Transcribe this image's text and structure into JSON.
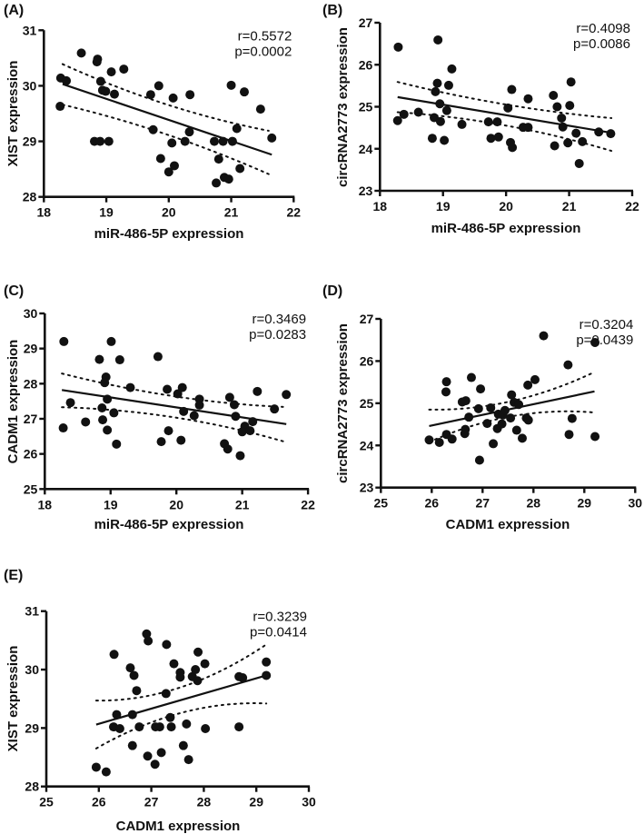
{
  "chart_data": [
    {
      "type": "scatter",
      "panel": "(A)",
      "xlabel": "miR-486-5P expression",
      "ylabel": "XIST expression",
      "xlim": [
        18,
        22
      ],
      "ylim": [
        28,
        31
      ],
      "xticks": [
        "18",
        "19",
        "20",
        "21",
        "22"
      ],
      "yticks": [
        "28",
        "29",
        "30",
        "31"
      ],
      "r_text": "r=0.5572",
      "p_text": "p=0.0002",
      "points": [
        [
          18.27,
          30.14
        ],
        [
          18.36,
          30.09
        ],
        [
          18.26,
          29.63
        ],
        [
          18.6,
          30.59
        ],
        [
          18.86,
          30.48
        ],
        [
          18.85,
          30.43
        ],
        [
          19.08,
          30.25
        ],
        [
          19.28,
          30.3
        ],
        [
          18.91,
          30.08
        ],
        [
          18.94,
          29.92
        ],
        [
          18.99,
          29.9
        ],
        [
          19.13,
          29.85
        ],
        [
          18.81,
          29.0
        ],
        [
          18.9,
          29.0
        ],
        [
          19.04,
          29.0
        ],
        [
          19.71,
          29.84
        ],
        [
          19.84,
          30.0
        ],
        [
          19.75,
          29.21
        ],
        [
          19.87,
          28.69
        ],
        [
          20.0,
          28.45
        ],
        [
          20.05,
          28.97
        ],
        [
          20.09,
          28.56
        ],
        [
          20.07,
          29.78
        ],
        [
          20.34,
          29.84
        ],
        [
          20.33,
          29.17
        ],
        [
          20.26,
          29.0
        ],
        [
          20.73,
          29.0
        ],
        [
          20.8,
          28.68
        ],
        [
          20.76,
          28.25
        ],
        [
          20.87,
          29.0
        ],
        [
          20.89,
          28.35
        ],
        [
          20.96,
          28.32
        ],
        [
          21.0,
          30.01
        ],
        [
          21.02,
          29.0
        ],
        [
          21.09,
          29.23
        ],
        [
          21.14,
          28.51
        ],
        [
          21.21,
          29.89
        ],
        [
          21.47,
          29.58
        ],
        [
          21.65,
          29.06
        ]
      ],
      "fit": [
        [
          18.3,
          30.03
        ],
        [
          21.65,
          28.76
        ]
      ],
      "ci_upper": [
        [
          18.3,
          30.39
        ],
        [
          19.95,
          29.67
        ],
        [
          21.6,
          29.19
        ]
      ],
      "ci_lower": [
        [
          18.3,
          29.66
        ],
        [
          19.95,
          29.13
        ],
        [
          21.6,
          28.41
        ]
      ]
    },
    {
      "type": "scatter",
      "panel": "(B)",
      "xlabel": "miR-486-5P expression",
      "ylabel": "circRNA2773 expression",
      "xlim": [
        18,
        22
      ],
      "ylim": [
        23,
        27
      ],
      "xticks": [
        "18",
        "19",
        "20",
        "21",
        "22"
      ],
      "yticks": [
        "23",
        "24",
        "25",
        "26",
        "27"
      ],
      "r_text": "r=0.4098",
      "p_text": "p=0.0086",
      "points": [
        [
          18.29,
          26.42
        ],
        [
          18.28,
          24.67
        ],
        [
          18.38,
          24.82
        ],
        [
          18.61,
          24.87
        ],
        [
          18.92,
          26.59
        ],
        [
          19.14,
          25.9
        ],
        [
          18.91,
          25.56
        ],
        [
          18.88,
          25.36
        ],
        [
          19.09,
          25.51
        ],
        [
          18.95,
          25.07
        ],
        [
          19.06,
          24.91
        ],
        [
          18.86,
          24.74
        ],
        [
          18.96,
          24.65
        ],
        [
          18.83,
          24.25
        ],
        [
          19.02,
          24.2
        ],
        [
          19.3,
          24.58
        ],
        [
          19.72,
          24.64
        ],
        [
          19.86,
          24.64
        ],
        [
          19.76,
          24.25
        ],
        [
          19.88,
          24.28
        ],
        [
          20.03,
          24.97
        ],
        [
          20.09,
          25.41
        ],
        [
          20.07,
          24.15
        ],
        [
          20.1,
          24.03
        ],
        [
          20.35,
          25.19
        ],
        [
          20.27,
          24.51
        ],
        [
          20.35,
          24.51
        ],
        [
          20.75,
          25.27
        ],
        [
          20.81,
          25.0
        ],
        [
          20.88,
          24.73
        ],
        [
          20.9,
          24.52
        ],
        [
          21.01,
          25.03
        ],
        [
          21.03,
          25.59
        ],
        [
          20.77,
          24.07
        ],
        [
          20.98,
          24.14
        ],
        [
          21.11,
          24.37
        ],
        [
          21.21,
          24.17
        ],
        [
          21.16,
          23.65
        ],
        [
          21.47,
          24.4
        ],
        [
          21.66,
          24.36
        ]
      ],
      "fit": [
        [
          18.28,
          25.23
        ],
        [
          21.67,
          24.38
        ]
      ],
      "ci_upper": [
        [
          18.28,
          25.59
        ],
        [
          19.97,
          25.06
        ],
        [
          21.67,
          24.73
        ]
      ],
      "ci_lower": [
        [
          18.28,
          24.87
        ],
        [
          19.97,
          24.56
        ],
        [
          21.67,
          23.95
        ]
      ]
    },
    {
      "type": "scatter",
      "panel": "(C)",
      "xlabel": "miR-486-5P expression",
      "ylabel": "CADM1 expression",
      "xlim": [
        18,
        22
      ],
      "ylim": [
        25,
        30
      ],
      "xticks": [
        "18",
        "19",
        "20",
        "21",
        "22"
      ],
      "yticks": [
        "25",
        "26",
        "27",
        "28",
        "29",
        "30"
      ],
      "r_text": "r=0.3469",
      "p_text": "p=0.0283",
      "points": [
        [
          18.29,
          29.2
        ],
        [
          18.28,
          26.74
        ],
        [
          18.39,
          27.46
        ],
        [
          18.62,
          26.91
        ],
        [
          18.83,
          28.69
        ],
        [
          18.93,
          28.19
        ],
        [
          18.91,
          28.03
        ],
        [
          18.95,
          27.56
        ],
        [
          18.87,
          27.31
        ],
        [
          18.88,
          26.97
        ],
        [
          18.95,
          26.68
        ],
        [
          19.01,
          29.2
        ],
        [
          19.05,
          27.17
        ],
        [
          19.14,
          28.68
        ],
        [
          19.09,
          26.28
        ],
        [
          19.3,
          27.89
        ],
        [
          19.72,
          28.77
        ],
        [
          19.86,
          27.84
        ],
        [
          19.88,
          26.66
        ],
        [
          19.77,
          26.35
        ],
        [
          20.02,
          27.71
        ],
        [
          20.09,
          27.89
        ],
        [
          20.07,
          26.39
        ],
        [
          20.11,
          27.21
        ],
        [
          20.27,
          27.09
        ],
        [
          20.35,
          27.56
        ],
        [
          20.35,
          27.39
        ],
        [
          20.73,
          26.29
        ],
        [
          20.78,
          26.14
        ],
        [
          20.81,
          27.61
        ],
        [
          20.88,
          27.4
        ],
        [
          20.9,
          27.07
        ],
        [
          20.97,
          25.95
        ],
        [
          21.04,
          26.79
        ],
        [
          21.0,
          26.63
        ],
        [
          21.12,
          26.66
        ],
        [
          21.16,
          26.92
        ],
        [
          21.23,
          27.78
        ],
        [
          21.49,
          27.28
        ],
        [
          21.67,
          27.69
        ]
      ],
      "fit": [
        [
          18.26,
          27.82
        ],
        [
          21.67,
          26.85
        ]
      ],
      "ci_upper": [
        [
          18.26,
          28.29
        ],
        [
          19.97,
          27.64
        ],
        [
          21.62,
          27.34
        ]
      ],
      "ci_lower": [
        [
          18.26,
          27.33
        ],
        [
          19.97,
          27.04
        ],
        [
          21.62,
          26.36
        ]
      ]
    },
    {
      "type": "scatter",
      "panel": "(D)",
      "xlabel": "CADM1 expression",
      "ylabel": "circRNA2773 expression",
      "xlim": [
        25,
        30
      ],
      "ylim": [
        23,
        27
      ],
      "xticks": [
        "25",
        "26",
        "27",
        "28",
        "29",
        "30"
      ],
      "yticks": [
        "23",
        "24",
        "25",
        "26",
        "27"
      ],
      "r_text": "r=0.3204",
      "p_text": "p=0.0439",
      "points": [
        [
          25.95,
          24.13
        ],
        [
          26.15,
          24.07
        ],
        [
          26.29,
          24.26
        ],
        [
          26.4,
          24.15
        ],
        [
          26.29,
          25.51
        ],
        [
          26.28,
          25.27
        ],
        [
          26.6,
          25.03
        ],
        [
          26.67,
          25.06
        ],
        [
          26.78,
          25.61
        ],
        [
          26.73,
          24.67
        ],
        [
          26.66,
          24.38
        ],
        [
          26.65,
          24.28
        ],
        [
          26.96,
          25.34
        ],
        [
          26.92,
          24.87
        ],
        [
          26.94,
          23.65
        ],
        [
          27.09,
          24.52
        ],
        [
          27.16,
          24.89
        ],
        [
          27.21,
          24.04
        ],
        [
          27.29,
          24.4
        ],
        [
          27.31,
          24.74
        ],
        [
          27.4,
          24.72
        ],
        [
          27.44,
          24.83
        ],
        [
          27.38,
          24.51
        ],
        [
          27.55,
          24.65
        ],
        [
          27.57,
          25.2
        ],
        [
          27.62,
          25.02
        ],
        [
          27.71,
          24.97
        ],
        [
          27.67,
          24.36
        ],
        [
          27.78,
          24.17
        ],
        [
          27.86,
          24.65
        ],
        [
          27.9,
          24.6
        ],
        [
          27.89,
          25.43
        ],
        [
          28.03,
          25.56
        ],
        [
          28.2,
          26.6
        ],
        [
          28.68,
          25.91
        ],
        [
          28.76,
          24.64
        ],
        [
          28.7,
          24.26
        ],
        [
          29.21,
          26.44
        ],
        [
          29.21,
          24.21
        ]
      ],
      "fit": [
        [
          25.95,
          24.46
        ],
        [
          29.2,
          25.28
        ]
      ],
      "ci_upper": [
        [
          25.95,
          24.85
        ],
        [
          27.57,
          25.05
        ],
        [
          29.2,
          25.74
        ]
      ],
      "ci_lower": [
        [
          25.95,
          24.08
        ],
        [
          27.57,
          24.69
        ],
        [
          29.2,
          24.78
        ]
      ]
    },
    {
      "type": "scatter",
      "panel": "(E)",
      "xlabel": "CADM1 expression",
      "ylabel": "XIST expression",
      "xlim": [
        25,
        30
      ],
      "ylim": [
        28,
        31
      ],
      "xticks": [
        "25",
        "26",
        "27",
        "28",
        "29",
        "30"
      ],
      "yticks": [
        "28",
        "29",
        "30",
        "31"
      ],
      "r_text": "r=0.3239",
      "p_text": "p=0.0414",
      "points": [
        [
          25.95,
          28.33
        ],
        [
          26.14,
          28.25
        ],
        [
          26.29,
          30.26
        ],
        [
          26.28,
          29.02
        ],
        [
          26.34,
          29.23
        ],
        [
          26.4,
          28.99
        ],
        [
          26.6,
          30.03
        ],
        [
          26.67,
          29.9
        ],
        [
          26.72,
          29.64
        ],
        [
          26.64,
          29.23
        ],
        [
          26.64,
          28.7
        ],
        [
          26.77,
          29.02
        ],
        [
          26.91,
          30.61
        ],
        [
          26.94,
          30.49
        ],
        [
          26.93,
          28.52
        ],
        [
          27.07,
          28.38
        ],
        [
          27.08,
          29.02
        ],
        [
          27.16,
          29.02
        ],
        [
          27.19,
          28.58
        ],
        [
          27.28,
          29.59
        ],
        [
          27.29,
          30.43
        ],
        [
          27.36,
          29.18
        ],
        [
          27.38,
          29.02
        ],
        [
          27.43,
          30.1
        ],
        [
          27.55,
          29.95
        ],
        [
          27.55,
          29.87
        ],
        [
          27.61,
          28.7
        ],
        [
          27.67,
          29.07
        ],
        [
          27.71,
          28.46
        ],
        [
          27.78,
          29.88
        ],
        [
          27.84,
          30.0
        ],
        [
          27.88,
          29.81
        ],
        [
          27.89,
          30.3
        ],
        [
          28.02,
          30.1
        ],
        [
          28.03,
          28.99
        ],
        [
          28.67,
          29.88
        ],
        [
          28.74,
          29.86
        ],
        [
          28.67,
          29.02
        ],
        [
          29.19,
          30.13
        ],
        [
          29.19,
          29.9
        ]
      ],
      "fit": [
        [
          25.95,
          29.06
        ],
        [
          29.19,
          29.9
        ]
      ],
      "ci_upper": [
        [
          25.95,
          29.47
        ],
        [
          27.57,
          29.7
        ],
        [
          29.19,
          30.43
        ]
      ],
      "ci_lower": [
        [
          25.95,
          28.65
        ],
        [
          27.57,
          29.26
        ],
        [
          29.19,
          29.42
        ]
      ]
    }
  ]
}
